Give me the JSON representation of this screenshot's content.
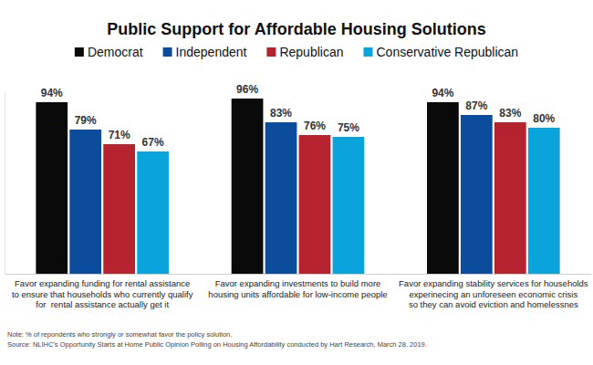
{
  "chart_data": {
    "type": "bar",
    "title": "Public Support for Affordable Housing Solutions",
    "categories": [
      "Favor expanding funding for rental assistance\nto ensure that households who currently qualify\nfor  rental assistance actually get it",
      "Favor expanding investments to build more\nhousing units affordable for low-income people",
      "Favor expanding stability services for households\nexperinecing an unforeseen economic crisis\nso they can avoid eviction and homelessnes"
    ],
    "series": [
      {
        "name": "Democrat",
        "color": "#0a0a0a",
        "values": [
          94,
          96,
          94
        ],
        "value_labels": [
          "94%",
          "96%",
          "94%"
        ]
      },
      {
        "name": "Independent",
        "color": "#0b4c9c",
        "values": [
          79,
          83,
          87
        ],
        "value_labels": [
          "79%",
          "83%",
          "87%"
        ]
      },
      {
        "name": "Republican",
        "color": "#b5232f",
        "values": [
          71,
          76,
          83
        ],
        "value_labels": [
          "71%",
          "76%",
          "83%"
        ]
      },
      {
        "name": "Conservative Republican",
        "color": "#0aa3dc",
        "values": [
          67,
          75,
          80
        ],
        "value_labels": [
          "67%",
          "75%",
          "80%"
        ]
      }
    ],
    "ylim": [
      0,
      100
    ],
    "yticks": [],
    "tick_labels": false,
    "data_labels": true,
    "legend": "top",
    "annotations": [
      "Note: % of repondents who strongly or somewhat favor the policy solution.",
      "Source: NLIHC's Opportunity Starts at Home Public Opinion Polling on Housing Affordability conducted by Hart Research, March 28, 2019."
    ]
  }
}
